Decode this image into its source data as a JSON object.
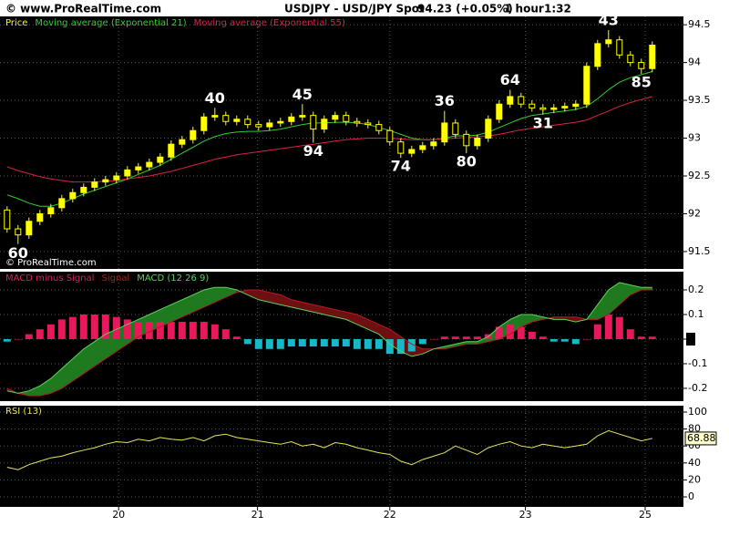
{
  "header": {
    "site": "© www.ProRealTime.com",
    "symbol": "USDJPY - USD/JPY Spot",
    "quote": "94.23 (+0.05%)",
    "timeframe": "1 hour",
    "time": "1:32"
  },
  "chart_data": [
    {
      "type": "candlestick",
      "watermark": "© ProRealTime.com",
      "series": [
        {
          "name": "Price",
          "color": "#ffff00",
          "open": [
            92.05,
            91.8,
            91.72,
            91.9,
            92.0,
            92.08,
            92.2,
            92.28,
            92.35,
            92.42,
            92.45,
            92.5,
            92.58,
            92.62,
            92.68,
            92.75,
            92.92,
            92.98,
            93.1,
            93.28,
            93.3,
            93.22,
            93.25,
            93.18,
            93.15,
            93.2,
            93.22,
            93.28,
            93.3,
            93.12,
            93.25,
            93.3,
            93.22,
            93.2,
            93.18,
            93.1,
            92.95,
            92.8,
            92.85,
            92.9,
            92.95,
            93.2,
            93.05,
            92.9,
            93.0,
            93.25,
            93.45,
            93.55,
            93.45,
            93.4,
            93.38,
            93.4,
            93.42,
            93.45,
            93.95,
            94.25,
            94.3,
            94.1,
            94.0,
            93.92
          ],
          "high": [
            92.1,
            91.85,
            91.95,
            92.05,
            92.13,
            92.25,
            92.33,
            92.4,
            92.47,
            92.5,
            92.55,
            92.63,
            92.67,
            92.73,
            92.8,
            92.97,
            93.03,
            93.15,
            93.33,
            93.4,
            93.35,
            93.3,
            93.3,
            93.23,
            93.25,
            93.27,
            93.33,
            93.45,
            93.35,
            93.3,
            93.35,
            93.35,
            93.27,
            93.25,
            93.23,
            93.15,
            93.0,
            92.9,
            92.95,
            93.0,
            93.36,
            93.25,
            93.1,
            93.05,
            93.3,
            93.5,
            93.64,
            93.6,
            93.5,
            93.45,
            93.45,
            93.47,
            93.5,
            94.0,
            94.3,
            94.43,
            94.35,
            94.15,
            94.05,
            94.28
          ],
          "low": [
            91.75,
            91.6,
            91.67,
            91.85,
            91.95,
            92.03,
            92.15,
            92.23,
            92.3,
            92.37,
            92.4,
            92.45,
            92.53,
            92.57,
            92.63,
            92.7,
            92.87,
            92.93,
            93.05,
            93.23,
            93.17,
            93.17,
            93.13,
            93.1,
            93.1,
            93.15,
            93.17,
            93.23,
            92.94,
            93.07,
            93.2,
            93.17,
            93.15,
            93.13,
            93.05,
            92.9,
            92.74,
            92.75,
            92.8,
            92.85,
            92.9,
            93.0,
            92.8,
            92.85,
            92.95,
            93.2,
            93.4,
            93.4,
            93.35,
            93.31,
            93.33,
            93.35,
            93.37,
            93.4,
            93.9,
            94.2,
            94.05,
            93.95,
            93.85,
            93.87
          ],
          "close": [
            91.8,
            91.72,
            91.9,
            92.0,
            92.08,
            92.2,
            92.28,
            92.35,
            92.42,
            92.45,
            92.5,
            92.58,
            92.62,
            92.68,
            92.75,
            92.92,
            92.98,
            93.1,
            93.28,
            93.3,
            93.22,
            93.25,
            93.18,
            93.15,
            93.2,
            93.22,
            93.28,
            93.3,
            93.12,
            93.25,
            93.3,
            93.22,
            93.2,
            93.18,
            93.1,
            92.95,
            92.8,
            92.85,
            92.9,
            92.95,
            93.2,
            93.05,
            92.9,
            93.0,
            93.25,
            93.45,
            93.55,
            93.45,
            93.4,
            93.38,
            93.4,
            93.42,
            93.45,
            93.95,
            94.25,
            94.3,
            94.1,
            94.0,
            93.92,
            94.23
          ]
        },
        {
          "name": "Moving average (Exponential 21)",
          "color": "#2fd02f",
          "values": [
            92.25,
            92.2,
            92.14,
            92.1,
            92.1,
            92.14,
            92.2,
            92.26,
            92.31,
            92.36,
            92.41,
            92.46,
            92.52,
            92.58,
            92.64,
            92.72,
            92.8,
            92.88,
            92.96,
            93.02,
            93.06,
            93.08,
            93.09,
            93.09,
            93.1,
            93.12,
            93.15,
            93.18,
            93.2,
            93.2,
            93.21,
            93.21,
            93.2,
            93.18,
            93.14,
            93.1,
            93.05,
            93.0,
            92.98,
            92.98,
            93.0,
            93.03,
            93.03,
            93.04,
            93.08,
            93.14,
            93.2,
            93.26,
            93.3,
            93.32,
            93.34,
            93.36,
            93.38,
            93.42,
            93.52,
            93.64,
            93.74,
            93.8,
            93.84,
            93.88
          ]
        },
        {
          "name": "Moving average (Exponential 55)",
          "color": "#e0204a",
          "values": [
            92.62,
            92.57,
            92.53,
            92.49,
            92.46,
            92.44,
            92.42,
            92.42,
            92.42,
            92.43,
            92.44,
            92.46,
            92.48,
            92.5,
            92.53,
            92.56,
            92.6,
            92.64,
            92.68,
            92.72,
            92.75,
            92.78,
            92.8,
            92.82,
            92.84,
            92.86,
            92.88,
            92.9,
            92.92,
            92.94,
            92.96,
            92.98,
            92.99,
            93.0,
            93.0,
            93.0,
            92.99,
            92.98,
            92.98,
            92.98,
            92.99,
            93.0,
            93.01,
            93.02,
            93.03,
            93.05,
            93.08,
            93.11,
            93.13,
            93.15,
            93.17,
            93.19,
            93.21,
            93.24,
            93.3,
            93.36,
            93.42,
            93.47,
            93.51,
            93.55
          ]
        }
      ],
      "annotations": [
        {
          "text": "60",
          "x": 1,
          "y": 91.47
        },
        {
          "text": "40",
          "x": 19,
          "y": 93.52
        },
        {
          "text": "45",
          "x": 27,
          "y": 93.57
        },
        {
          "text": "94",
          "x": 28,
          "y": 92.82
        },
        {
          "text": "74",
          "x": 36,
          "y": 92.62
        },
        {
          "text": "36",
          "x": 40,
          "y": 93.48
        },
        {
          "text": "80",
          "x": 42,
          "y": 92.68
        },
        {
          "text": "64",
          "x": 46,
          "y": 93.76
        },
        {
          "text": "31",
          "x": 49,
          "y": 93.19
        },
        {
          "text": "43",
          "x": 55,
          "y": 94.55
        },
        {
          "text": "85",
          "x": 58,
          "y": 93.73
        }
      ],
      "ylim": [
        91.27,
        94.61
      ],
      "yticks": [
        91.5,
        92,
        92.5,
        93,
        93.5,
        94,
        94.5
      ],
      "grid": true
    },
    {
      "type": "macd",
      "up_fill": "#1f7a1f",
      "down_fill": "#6e0f12",
      "series": [
        {
          "name": "MACD minus Signal",
          "color": "#e8195a",
          "negative_color": "#19b8c8",
          "values": [
            -0.01,
            0,
            0.02,
            0.04,
            0.06,
            0.08,
            0.09,
            0.1,
            0.1,
            0.1,
            0.09,
            0.08,
            0.07,
            0.07,
            0.07,
            0.07,
            0.07,
            0.07,
            0.07,
            0.06,
            0.04,
            0.01,
            -0.02,
            -0.04,
            -0.04,
            -0.04,
            -0.03,
            -0.03,
            -0.03,
            -0.03,
            -0.03,
            -0.03,
            -0.04,
            -0.04,
            -0.04,
            -0.06,
            -0.06,
            -0.05,
            -0.02,
            0,
            0.01,
            0.01,
            0.01,
            0.01,
            0.02,
            0.05,
            0.06,
            0.05,
            0.03,
            0.01,
            -0.01,
            -0.01,
            -0.02,
            0,
            0.06,
            0.1,
            0.09,
            0.04,
            0.01,
            0.01
          ]
        },
        {
          "name": "Signal",
          "color": "#b01c1c",
          "values": [
            -0.2,
            -0.22,
            -0.23,
            -0.23,
            -0.22,
            -0.2,
            -0.17,
            -0.14,
            -0.11,
            -0.08,
            -0.05,
            -0.02,
            0.01,
            0.03,
            0.05,
            0.07,
            0.09,
            0.11,
            0.13,
            0.15,
            0.17,
            0.19,
            0.2,
            0.2,
            0.19,
            0.18,
            0.16,
            0.15,
            0.14,
            0.13,
            0.12,
            0.11,
            0.1,
            0.08,
            0.06,
            0.04,
            0.01,
            -0.02,
            -0.04,
            -0.04,
            -0.04,
            -0.03,
            -0.02,
            -0.02,
            -0.01,
            0.0,
            0.02,
            0.05,
            0.07,
            0.08,
            0.09,
            0.09,
            0.09,
            0.08,
            0.08,
            0.1,
            0.14,
            0.18,
            0.2,
            0.2
          ]
        },
        {
          "name": "MACD (12 26 9)",
          "color": "#5bd35b",
          "values": [
            -0.21,
            -0.22,
            -0.21,
            -0.19,
            -0.16,
            -0.12,
            -0.08,
            -0.04,
            -0.01,
            0.02,
            0.04,
            0.06,
            0.08,
            0.1,
            0.12,
            0.14,
            0.16,
            0.18,
            0.2,
            0.21,
            0.21,
            0.2,
            0.18,
            0.16,
            0.15,
            0.14,
            0.13,
            0.12,
            0.11,
            0.1,
            0.09,
            0.08,
            0.06,
            0.04,
            0.02,
            -0.02,
            -0.05,
            -0.07,
            -0.06,
            -0.04,
            -0.03,
            -0.02,
            -0.01,
            -0.01,
            0.01,
            0.05,
            0.08,
            0.1,
            0.1,
            0.09,
            0.08,
            0.08,
            0.07,
            0.08,
            0.14,
            0.2,
            0.23,
            0.22,
            0.21,
            0.21
          ]
        }
      ],
      "ylim": [
        -0.252,
        0.274
      ],
      "yticks": [
        0.2,
        0.1,
        0,
        -0.1,
        -0.2
      ],
      "grid": true
    },
    {
      "type": "line",
      "series": [
        {
          "name": "RSI (13)",
          "color": "#e6e65c",
          "values": [
            35,
            32,
            38,
            42,
            46,
            48,
            52,
            55,
            58,
            62,
            65,
            64,
            68,
            66,
            70,
            68,
            67,
            70,
            66,
            72,
            74,
            70,
            68,
            66,
            64,
            62,
            65,
            60,
            62,
            58,
            64,
            62,
            58,
            55,
            52,
            50,
            42,
            38,
            44,
            48,
            52,
            60,
            55,
            50,
            58,
            62,
            65,
            60,
            58,
            62,
            60,
            58,
            60,
            62,
            72,
            78,
            74,
            70,
            66,
            68.88
          ]
        }
      ],
      "ylim": [
        -11.8,
        107.5
      ],
      "yticks": [
        0,
        20,
        40,
        60,
        80,
        100
      ],
      "grid": true,
      "xlim": [
        -0.65,
        61.85
      ],
      "xticks": [
        {
          "value": 10.2,
          "label": "20"
        },
        {
          "value": 22.9,
          "label": "21"
        },
        {
          "value": 35.0,
          "label": "22"
        },
        {
          "value": 47.4,
          "label": "23"
        },
        {
          "value": 58.35,
          "label": "25"
        }
      ]
    }
  ]
}
